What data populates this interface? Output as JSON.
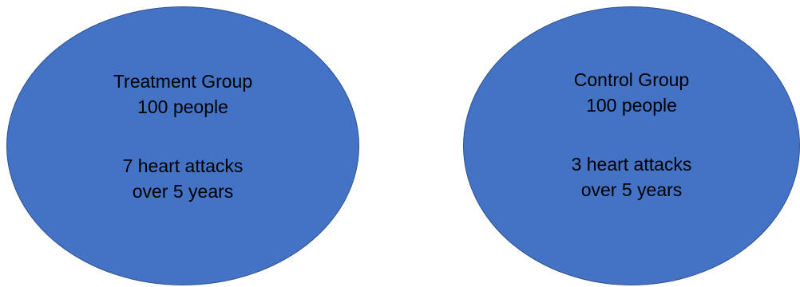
{
  "groups": [
    {
      "title": "Treatment Group",
      "count": "100 people",
      "outcome_line1": "7 heart attacks",
      "outcome_line2": "over 5 years"
    },
    {
      "title": "Control Group",
      "count": "100 people",
      "outcome_line1": "3 heart attacks",
      "outcome_line2": "over 5 years"
    }
  ],
  "colors": {
    "ellipse_fill": "#4472c4",
    "ellipse_border": "#2f528f",
    "text": "#000000"
  }
}
